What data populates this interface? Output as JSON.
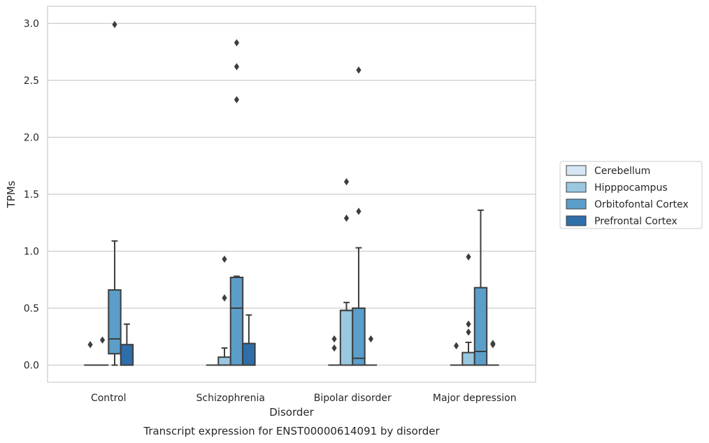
{
  "chart_data": {
    "type": "box",
    "xlabel": "Disorder",
    "ylabel": "TPMs",
    "caption": "Transcript expression for ENST00000614091 by disorder",
    "ylim": [
      -0.15,
      3.15
    ],
    "yticks": [
      "0.0",
      "0.5",
      "1.0",
      "1.5",
      "2.0",
      "2.5",
      "3.0"
    ],
    "grid": "horizontal",
    "legend_position": "right",
    "categories": [
      "Control",
      "Schizophrenia",
      "Bipolar disorder",
      "Major depression"
    ],
    "series": [
      {
        "name": "Cerebellum",
        "color": "#d6e6f4",
        "boxes": [
          {
            "whisker_low": 0,
            "q1": 0,
            "median": 0,
            "q3": 0,
            "whisker_high": 0,
            "outliers": [
              0.18
            ]
          },
          {
            "whisker_low": 0,
            "q1": 0,
            "median": 0,
            "q3": 0,
            "whisker_high": 0,
            "outliers": []
          },
          {
            "whisker_low": 0,
            "q1": 0,
            "median": 0,
            "q3": 0,
            "whisker_high": 0,
            "outliers": [
              0.15,
              0.23
            ]
          },
          {
            "whisker_low": 0,
            "q1": 0,
            "median": 0,
            "q3": 0,
            "whisker_high": 0,
            "outliers": [
              0.17
            ]
          }
        ]
      },
      {
        "name": "Hipppocampus",
        "color": "#9ac8e0",
        "boxes": [
          {
            "whisker_low": 0,
            "q1": 0,
            "median": 0,
            "q3": 0,
            "whisker_high": 0,
            "outliers": [
              0.22
            ]
          },
          {
            "whisker_low": 0,
            "q1": 0,
            "median": 0,
            "q3": 0.07,
            "whisker_high": 0.15,
            "outliers": [
              0.59,
              0.93
            ]
          },
          {
            "whisker_low": 0,
            "q1": 0,
            "median": 0.48,
            "q3": 0.48,
            "whisker_high": 0.55,
            "outliers": [
              1.29,
              1.61
            ]
          },
          {
            "whisker_low": 0,
            "q1": 0,
            "median": 0,
            "q3": 0.11,
            "whisker_high": 0.2,
            "outliers": [
              0.29,
              0.36,
              0.95
            ]
          }
        ]
      },
      {
        "name": "Orbitofontal Cortex",
        "color": "#5a9ec9",
        "boxes": [
          {
            "whisker_low": 0,
            "q1": 0.1,
            "median": 0.23,
            "q3": 0.66,
            "whisker_high": 1.09,
            "outliers": [
              2.99
            ]
          },
          {
            "whisker_low": 0,
            "q1": 0,
            "median": 0.5,
            "q3": 0.77,
            "whisker_high": 0.78,
            "outliers": [
              2.33,
              2.62,
              2.83
            ]
          },
          {
            "whisker_low": 0,
            "q1": 0,
            "median": 0.06,
            "q3": 0.5,
            "whisker_high": 1.03,
            "outliers": [
              1.35,
              2.59
            ]
          },
          {
            "whisker_low": 0,
            "q1": 0,
            "median": 0.12,
            "q3": 0.68,
            "whisker_high": 1.36,
            "outliers": []
          }
        ]
      },
      {
        "name": "Prefrontal Cortex",
        "color": "#2e6ea9",
        "boxes": [
          {
            "whisker_low": 0,
            "q1": 0,
            "median": 0,
            "q3": 0.18,
            "whisker_high": 0.36,
            "outliers": []
          },
          {
            "whisker_low": 0,
            "q1": 0,
            "median": 0,
            "q3": 0.19,
            "whisker_high": 0.44,
            "outliers": []
          },
          {
            "whisker_low": 0,
            "q1": 0,
            "median": 0,
            "q3": 0,
            "whisker_high": 0,
            "outliers": [
              0.23
            ]
          },
          {
            "whisker_low": 0,
            "q1": 0,
            "median": 0,
            "q3": 0,
            "whisker_high": 0,
            "outliers": [
              0.18,
              0.19
            ]
          }
        ]
      }
    ]
  }
}
